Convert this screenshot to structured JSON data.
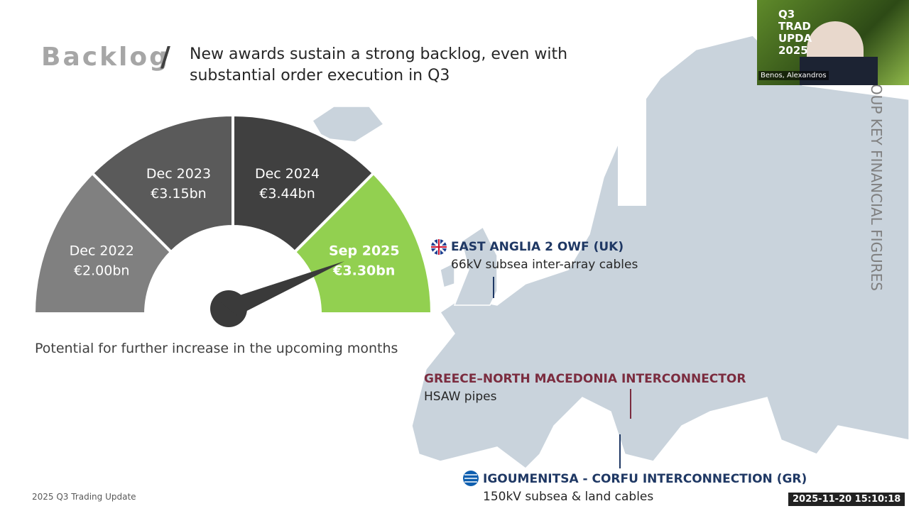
{
  "header": {
    "title": "Backlog",
    "separator": "/",
    "subtitle": "New awards sustain a strong backlog, even with substantial order execution in Q3"
  },
  "gauge": {
    "segments": [
      {
        "label": "Dec 2022",
        "value": "€2.00bn"
      },
      {
        "label": "Dec 2023",
        "value": "€3.15bn"
      },
      {
        "label": "Dec 2024",
        "value": "€3.44bn"
      },
      {
        "label": "Sep 2025",
        "value": "€3.30bn"
      }
    ],
    "note": "Potential for further increase in the upcoming months"
  },
  "projects": [
    {
      "title": "EAST ANGLIA 2 OWF (UK)",
      "detail": "66kV subsea inter-array cables"
    },
    {
      "title": "GREECE–NORTH MACEDONIA INTERCONNECTOR",
      "detail": "HSAW pipes"
    },
    {
      "title": "IGOUMENITSA - CORFU INTERCONNECTION (GR)",
      "detail": "150kV subsea & land cables"
    }
  ],
  "side_label": "OUP KEY FINANCIAL FIGURES",
  "video": {
    "banner": "Q3 TRAD UPDA 2025",
    "name": "Benos, Alexandros"
  },
  "footer": "2025 Q3  Trading Update",
  "timestamp": "2025-11-20  15:10:18"
}
